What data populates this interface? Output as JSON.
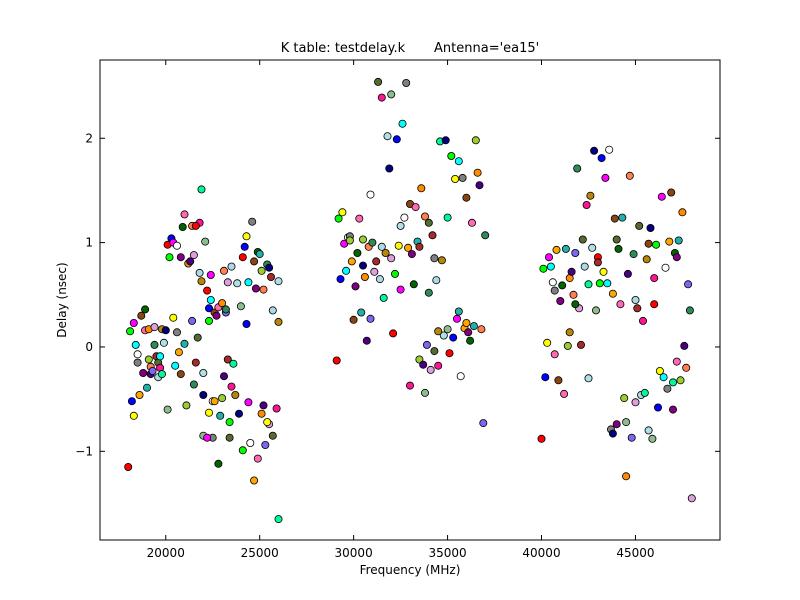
{
  "chart_data": {
    "type": "scatter",
    "title": "K table: testdelay.k       Antenna='ea15'",
    "xlabel": "Frequency (MHz)",
    "ylabel": "Delay (nsec)",
    "xlim": [
      16500,
      49500
    ],
    "ylim": [
      -1.85,
      2.75
    ],
    "xticks": [
      20000,
      25000,
      30000,
      35000,
      40000,
      45000
    ],
    "yticks": [
      -1,
      0,
      1,
      2
    ],
    "grid": false,
    "legend": "none",
    "palette": [
      "#ff0000",
      "#00ff00",
      "#0000ff",
      "#ffff00",
      "#ff00ff",
      "#00ffff",
      "#ffffff",
      "#808080",
      "#ffa500",
      "#8b4513",
      "#800080",
      "#006400",
      "#ff69b4",
      "#20b2aa",
      "#9acd32",
      "#ff8c00",
      "#4b0082",
      "#ff7f50",
      "#7b68ee",
      "#2e8b57",
      "#dda0dd",
      "#a52a2a",
      "#556b2f",
      "#add8e6",
      "#ff1493",
      "#00fa9a",
      "#b8860b",
      "#b0e0e6",
      "#000080",
      "#8fbc8f"
    ],
    "points": [
      [
        18000,
        -1.15
      ],
      [
        18100,
        0.15
      ],
      [
        18200,
        -0.52
      ],
      [
        18300,
        -0.66
      ],
      [
        18300,
        0.23
      ],
      [
        18400,
        0.02
      ],
      [
        18500,
        -0.07
      ],
      [
        18500,
        -0.15
      ],
      [
        18600,
        -0.46
      ],
      [
        18700,
        0.3
      ],
      [
        18800,
        -0.25
      ],
      [
        18900,
        0.36
      ],
      [
        18900,
        0.16
      ],
      [
        19000,
        -0.39
      ],
      [
        19100,
        -0.12
      ],
      [
        19100,
        0.17
      ],
      [
        19200,
        -0.26
      ],
      [
        19200,
        -0.19
      ],
      [
        19300,
        -0.23
      ],
      [
        19400,
        0.02
      ],
      [
        19400,
        0.19
      ],
      [
        19500,
        -0.09
      ],
      [
        19600,
        -0.15
      ],
      [
        19600,
        -0.29
      ],
      [
        19700,
        -0.2
      ],
      [
        19800,
        -0.26
      ],
      [
        19800,
        0.17
      ],
      [
        19900,
        0.04
      ],
      [
        20000,
        0.16
      ],
      [
        20100,
        -0.6
      ],
      [
        20100,
        0.98
      ],
      [
        20200,
        0.86
      ],
      [
        20300,
        1.04
      ],
      [
        20400,
        0.28
      ],
      [
        20400,
        1.0
      ],
      [
        20500,
        -0.18
      ],
      [
        20600,
        0.97
      ],
      [
        20600,
        0.14
      ],
      [
        20700,
        -0.05
      ],
      [
        20800,
        -0.26
      ],
      [
        20800,
        0.86
      ],
      [
        20900,
        1.15
      ],
      [
        21000,
        1.27
      ],
      [
        21000,
        0.03
      ],
      [
        21100,
        -0.56
      ],
      [
        21200,
        0.8
      ],
      [
        21300,
        0.82
      ],
      [
        21400,
        1.16
      ],
      [
        21400,
        0.25
      ],
      [
        21500,
        -0.36
      ],
      [
        21500,
        0.88
      ],
      [
        21600,
        -0.15
      ],
      [
        21700,
        0.09
      ],
      [
        21800,
        0.71
      ],
      [
        21800,
        1.19
      ],
      [
        21900,
        1.51
      ],
      [
        21900,
        0.63
      ],
      [
        22000,
        -0.25
      ],
      [
        22000,
        -0.46
      ],
      [
        22100,
        1.01
      ],
      [
        22200,
        0.54
      ],
      [
        22300,
        0.25
      ],
      [
        22300,
        0.37
      ],
      [
        22300,
        -0.63
      ],
      [
        22400,
        0.69
      ],
      [
        22400,
        0.45
      ],
      [
        22500,
        -0.52
      ],
      [
        22500,
        -0.87
      ],
      [
        22600,
        -0.52
      ],
      [
        22600,
        0.33
      ],
      [
        22700,
        0.3
      ],
      [
        22800,
        -1.12
      ],
      [
        22800,
        0.38
      ],
      [
        22900,
        -0.66
      ],
      [
        23000,
        -0.49
      ],
      [
        23000,
        0.42
      ],
      [
        23100,
        -0.28
      ],
      [
        23100,
        0.73
      ],
      [
        23200,
        0.33
      ],
      [
        23200,
        0.36
      ],
      [
        23300,
        0.62
      ],
      [
        23300,
        -0.12
      ],
      [
        23400,
        -0.87
      ],
      [
        23500,
        0.77
      ],
      [
        23500,
        -0.38
      ],
      [
        23600,
        -0.16
      ],
      [
        23700,
        -0.46
      ],
      [
        23800,
        0.61
      ],
      [
        23900,
        -0.64
      ],
      [
        24000,
        0.39
      ],
      [
        24100,
        0.86
      ],
      [
        24100,
        -0.99
      ],
      [
        24200,
        0.96
      ],
      [
        24300,
        1.06
      ],
      [
        24400,
        -0.53
      ],
      [
        24400,
        0.62
      ],
      [
        24500,
        -0.92
      ],
      [
        24600,
        1.2
      ],
      [
        24700,
        -1.28
      ],
      [
        24700,
        0.82
      ],
      [
        24800,
        0.56
      ],
      [
        24900,
        0.91
      ],
      [
        24900,
        -1.07
      ],
      [
        25000,
        0.89
      ],
      [
        25100,
        0.73
      ],
      [
        25100,
        -0.64
      ],
      [
        25200,
        -0.56
      ],
      [
        25200,
        0.55
      ],
      [
        25300,
        -0.94
      ],
      [
        25400,
        0.79
      ],
      [
        25500,
        -0.74
      ],
      [
        25600,
        0.67
      ],
      [
        25700,
        -0.85
      ],
      [
        25700,
        0.35
      ],
      [
        25900,
        -0.59
      ],
      [
        26000,
        -1.65
      ],
      [
        26000,
        0.24
      ],
      [
        26000,
        0.63
      ],
      [
        25500,
        0.76
      ],
      [
        22000,
        -0.85
      ],
      [
        29100,
        -0.13
      ],
      [
        29200,
        1.23
      ],
      [
        29300,
        0.65
      ],
      [
        29400,
        1.29
      ],
      [
        29500,
        0.99
      ],
      [
        29600,
        0.73
      ],
      [
        29700,
        1.05
      ],
      [
        29800,
        1.06
      ],
      [
        29900,
        0.82
      ],
      [
        30000,
        0.26
      ],
      [
        30100,
        0.58
      ],
      [
        30200,
        0.9
      ],
      [
        30300,
        1.23
      ],
      [
        30400,
        0.33
      ],
      [
        30500,
        1.03
      ],
      [
        30600,
        0.67
      ],
      [
        30700,
        0.06
      ],
      [
        30800,
        0.96
      ],
      [
        30900,
        0.27
      ],
      [
        31000,
        1.0
      ],
      [
        31100,
        0.72
      ],
      [
        31200,
        0.82
      ],
      [
        31300,
        2.54
      ],
      [
        31400,
        0.65
      ],
      [
        31500,
        2.39
      ],
      [
        31600,
        0.47
      ],
      [
        31700,
        0.9
      ],
      [
        31800,
        2.02
      ],
      [
        31900,
        1.71
      ],
      [
        32000,
        2.42
      ],
      [
        32100,
        0.13
      ],
      [
        32200,
        0.7
      ],
      [
        32300,
        1.99
      ],
      [
        32400,
        0.97
      ],
      [
        32500,
        0.55
      ],
      [
        32600,
        2.14
      ],
      [
        32700,
        1.24
      ],
      [
        32800,
        2.53
      ],
      [
        32900,
        0.95
      ],
      [
        33000,
        1.37
      ],
      [
        33100,
        0.89
      ],
      [
        33200,
        0.6
      ],
      [
        33300,
        1.34
      ],
      [
        33400,
        1.01
      ],
      [
        33500,
        -0.12
      ],
      [
        33600,
        1.52
      ],
      [
        33700,
        -0.17
      ],
      [
        33800,
        1.25
      ],
      [
        33900,
        0.02
      ],
      [
        34000,
        0.52
      ],
      [
        34100,
        -0.22
      ],
      [
        34200,
        1.07
      ],
      [
        34300,
        -0.04
      ],
      [
        34400,
        0.64
      ],
      [
        34500,
        -0.18
      ],
      [
        34600,
        1.97
      ],
      [
        34700,
        0.83
      ],
      [
        34800,
        0.11
      ],
      [
        34900,
        1.98
      ],
      [
        35000,
        0.17
      ],
      [
        35100,
        -0.06
      ],
      [
        35200,
        1.83
      ],
      [
        35300,
        0.09
      ],
      [
        35400,
        1.61
      ],
      [
        35500,
        0.27
      ],
      [
        35600,
        1.78
      ],
      [
        35700,
        -0.28
      ],
      [
        35800,
        1.62
      ],
      [
        35900,
        0.18
      ],
      [
        36000,
        1.43
      ],
      [
        36100,
        0.14
      ],
      [
        36200,
        0.06
      ],
      [
        36300,
        1.19
      ],
      [
        36400,
        0.2
      ],
      [
        36500,
        1.98
      ],
      [
        36600,
        1.67
      ],
      [
        36700,
        1.55
      ],
      [
        36800,
        0.17
      ],
      [
        36900,
        -0.73
      ],
      [
        37000,
        1.07
      ],
      [
        32000,
        0.85
      ],
      [
        33500,
        0.96
      ],
      [
        34000,
        1.19
      ],
      [
        31500,
        0.96
      ],
      [
        33000,
        -0.37
      ],
      [
        35000,
        1.24
      ],
      [
        34500,
        0.15
      ],
      [
        32500,
        1.16
      ],
      [
        30500,
        0.78
      ],
      [
        33800,
        -0.44
      ],
      [
        40000,
        -0.88
      ],
      [
        40100,
        0.75
      ],
      [
        40200,
        -0.29
      ],
      [
        40300,
        0.04
      ],
      [
        40400,
        0.86
      ],
      [
        40500,
        0.77
      ],
      [
        40600,
        0.62
      ],
      [
        40700,
        0.54
      ],
      [
        40800,
        0.93
      ],
      [
        40900,
        -0.32
      ],
      [
        41000,
        0.44
      ],
      [
        41100,
        0.59
      ],
      [
        41200,
        -0.45
      ],
      [
        41300,
        0.94
      ],
      [
        41400,
        0.01
      ],
      [
        41500,
        0.66
      ],
      [
        41600,
        0.72
      ],
      [
        41700,
        0.5
      ],
      [
        41800,
        0.9
      ],
      [
        41900,
        1.71
      ],
      [
        42000,
        0.37
      ],
      [
        42100,
        0.02
      ],
      [
        42200,
        1.03
      ],
      [
        42300,
        0.77
      ],
      [
        42400,
        1.36
      ],
      [
        42500,
        0.6
      ],
      [
        42600,
        1.45
      ],
      [
        42700,
        0.95
      ],
      [
        42800,
        1.88
      ],
      [
        42900,
        0.35
      ],
      [
        43000,
        0.86
      ],
      [
        43100,
        0.61
      ],
      [
        43200,
        1.81
      ],
      [
        43300,
        0.72
      ],
      [
        43400,
        1.62
      ],
      [
        43500,
        0.61
      ],
      [
        43600,
        1.89
      ],
      [
        43700,
        -0.79
      ],
      [
        43800,
        0.51
      ],
      [
        43900,
        1.23
      ],
      [
        44000,
        -0.74
      ],
      [
        44100,
        0.94
      ],
      [
        44200,
        0.41
      ],
      [
        44300,
        1.24
      ],
      [
        44400,
        -0.49
      ],
      [
        44500,
        -1.24
      ],
      [
        44600,
        0.7
      ],
      [
        44700,
        1.64
      ],
      [
        44800,
        -0.87
      ],
      [
        44900,
        0.89
      ],
      [
        45000,
        -0.53
      ],
      [
        45100,
        0.37
      ],
      [
        45200,
        1.16
      ],
      [
        45300,
        -0.46
      ],
      [
        45400,
        0.25
      ],
      [
        45500,
        -0.44
      ],
      [
        45600,
        0.84
      ],
      [
        45700,
        -0.8
      ],
      [
        45800,
        1.14
      ],
      [
        45900,
        -0.88
      ],
      [
        46000,
        0.41
      ],
      [
        46100,
        0.98
      ],
      [
        46200,
        -0.58
      ],
      [
        46300,
        -0.23
      ],
      [
        46400,
        1.44
      ],
      [
        46500,
        -0.29
      ],
      [
        46600,
        0.76
      ],
      [
        46700,
        -0.4
      ],
      [
        46800,
        1.01
      ],
      [
        46900,
        1.48
      ],
      [
        47000,
        -0.6
      ],
      [
        47100,
        0.9
      ],
      [
        47200,
        -0.14
      ],
      [
        47300,
        1.02
      ],
      [
        47400,
        -0.32
      ],
      [
        47500,
        1.29
      ],
      [
        47600,
        0.01
      ],
      [
        47700,
        -0.2
      ],
      [
        47800,
        0.6
      ],
      [
        47900,
        0.35
      ],
      [
        48000,
        -1.45
      ],
      [
        43000,
        0.81
      ],
      [
        44000,
        1.03
      ],
      [
        45000,
        0.45
      ],
      [
        46000,
        0.66
      ],
      [
        47000,
        -0.34
      ],
      [
        41500,
        0.14
      ],
      [
        42500,
        -0.3
      ],
      [
        43800,
        -0.83
      ],
      [
        44500,
        -0.72
      ],
      [
        21600,
        1.16
      ],
      [
        23400,
        -0.72
      ],
      [
        24300,
        0.22
      ],
      [
        25400,
        -0.72
      ],
      [
        22200,
        -0.87
      ],
      [
        19700,
        -0.09
      ],
      [
        30900,
        1.46
      ],
      [
        34300,
        0.85
      ],
      [
        36000,
        0.23
      ],
      [
        45700,
        0.99
      ],
      [
        47200,
        0.86
      ],
      [
        41800,
        0.41
      ],
      [
        40700,
        -0.07
      ],
      [
        35600,
        0.34
      ],
      [
        29800,
        1.02
      ]
    ]
  }
}
